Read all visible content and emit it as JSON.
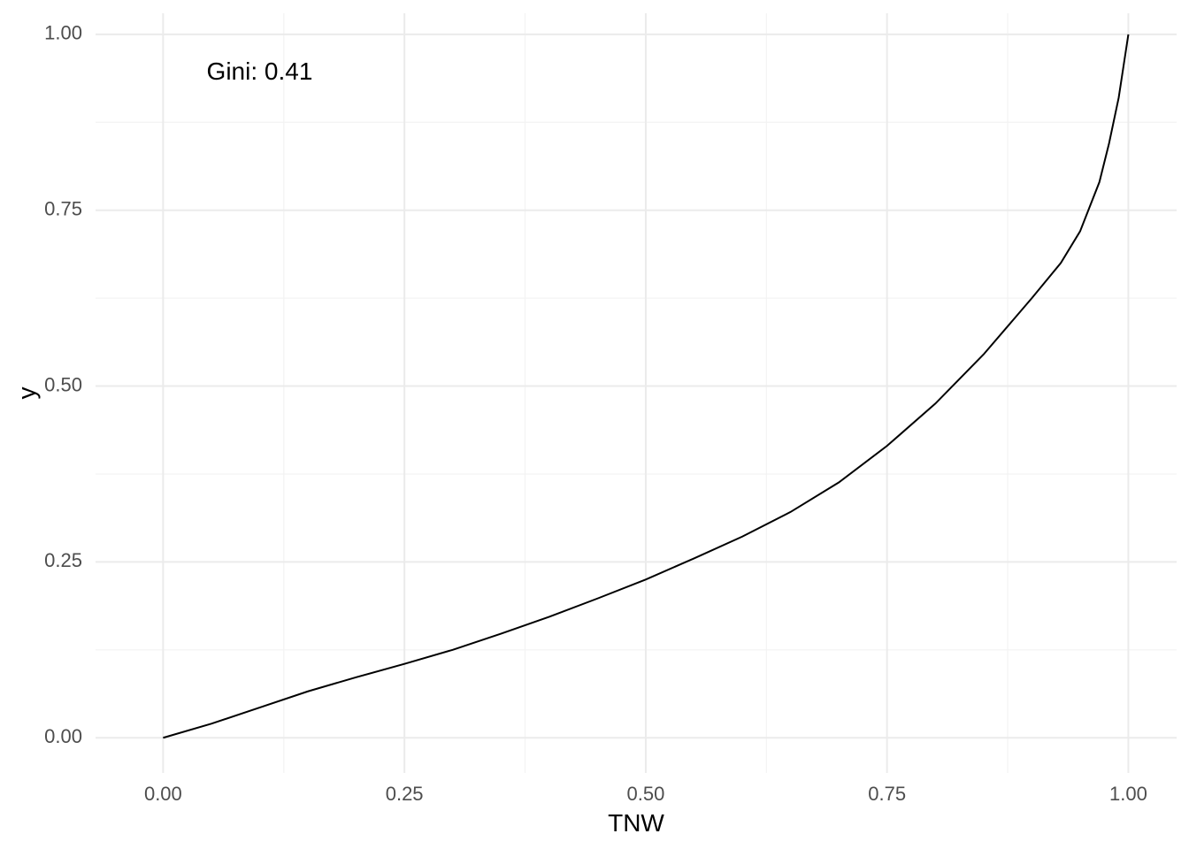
{
  "chart_data": {
    "type": "line",
    "xlabel": "TNW",
    "ylabel": "y",
    "xlim": [
      -0.07,
      1.05
    ],
    "ylim": [
      -0.05,
      1.03
    ],
    "x_ticks": [
      "0.00",
      "0.25",
      "0.50",
      "0.75",
      "1.00"
    ],
    "y_ticks": [
      "0.00",
      "0.25",
      "0.50",
      "0.75",
      "1.00"
    ],
    "grid": true,
    "annotation": {
      "text": "Gini: 0.41",
      "x": 0.1,
      "y": 0.945
    },
    "series": [
      {
        "x": [
          0.0,
          0.05,
          0.1,
          0.15,
          0.2,
          0.25,
          0.3,
          0.35,
          0.4,
          0.45,
          0.5,
          0.55,
          0.6,
          0.65,
          0.7,
          0.75,
          0.8,
          0.85,
          0.9,
          0.93,
          0.95,
          0.97,
          0.98,
          0.99,
          1.0
        ],
        "y": [
          0.0,
          0.02,
          0.043,
          0.066,
          0.086,
          0.105,
          0.125,
          0.148,
          0.172,
          0.198,
          0.225,
          0.255,
          0.286,
          0.321,
          0.363,
          0.415,
          0.475,
          0.545,
          0.625,
          0.675,
          0.72,
          0.79,
          0.845,
          0.91,
          1.0
        ]
      }
    ]
  }
}
